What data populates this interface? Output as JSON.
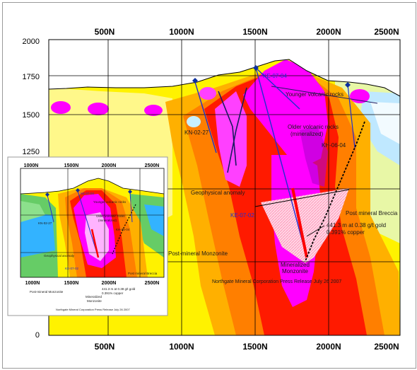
{
  "axes": {
    "x_top_ticks": [
      "500N",
      "1000N",
      "1500N",
      "2000N",
      "2500N"
    ],
    "x_bottom_ticks": [
      "500N",
      "1000N",
      "1500N",
      "2000N",
      "2500N"
    ],
    "y_ticks": [
      "2000",
      "1750",
      "1500",
      "1250",
      "0"
    ]
  },
  "labels": {
    "ke0704": "KE-07-04",
    "younger_volcanic": "Younger volcanic rocks",
    "older_volcanic_1": "Older volcanic rocks",
    "older_volcanic_2": "(mineralized)",
    "kn0227": "KN-02-27",
    "kh0604": "KH-06-04",
    "geophysical_anomaly": "Geophysical anomaly",
    "ke0702": "KE-07-02",
    "post_mineral_breccia": "Post mineral Breccia",
    "intercept_1": "441.3 m at 0.38 g/t gold",
    "intercept_2": "0.391% copper",
    "post_mineral_monzonite": "Post-mineral Monzonite",
    "mineralized_1": "Mineralized",
    "mineralized_2": "Monzonite",
    "credit": "Northgate Mineral Corporation Press Release July 26 2007"
  },
  "inset": {
    "x_top_ticks": [
      "1000N",
      "1500N",
      "2000N",
      "2500N"
    ],
    "x_bottom_ticks": [
      "1000N",
      "1500N",
      "2000N",
      "2500N"
    ],
    "ke0704": "KE-07-04",
    "younger_volcanic": "Younger volcanic rocks",
    "older_volcanic_1": "Older volcanic rocks",
    "older_volcanic_2": "(mineralized)",
    "kn0227": "KN-02-27",
    "kh0604": "KH-06-04",
    "geophysical_anomaly": "Geophysical anomaly",
    "ke0702": "KE-07-02",
    "post_mineral_breccia": "Post mineral Breccia",
    "intercept_1": "441.3 m at 0.38 g/t gold",
    "intercept_2": "0.391% copper",
    "post_mineral_monzonite": "Post-mineral Monzonite",
    "mineralized_1": "Mineralized",
    "mineralized_2": "Monzonite",
    "credit": "Northgate Mineral Corporation Press Release July 26 2007"
  },
  "colors": {
    "background_yellow": "#fff200",
    "magenta": "#ff00ff",
    "red": "#ff1a00",
    "orange": "#ff7f00",
    "drillhole_blue": "#1f2fd0",
    "collar_blue": "#0a2fa0"
  }
}
